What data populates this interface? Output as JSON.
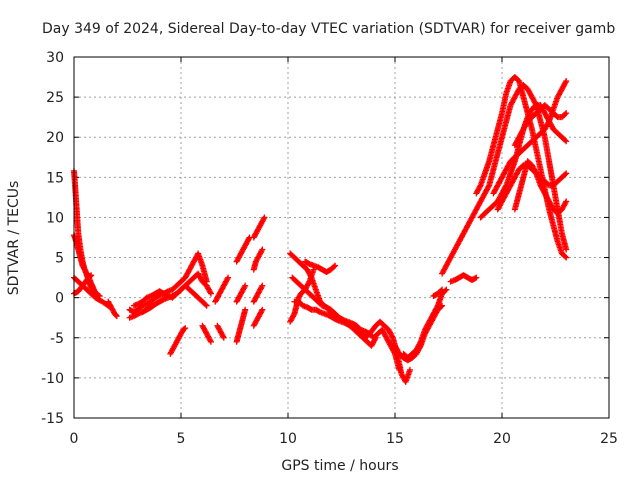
{
  "chart_data": {
    "type": "scatter",
    "title": "Day 349 of 2024, Sidereal Day-to-day VTEC variation (SDTVAR) for receiver gamb",
    "xlabel": "GPS time / hours",
    "ylabel": "SDTVAR / TECUs",
    "xlim": [
      0,
      25
    ],
    "ylim": [
      -15,
      30
    ],
    "xticks": [
      "0",
      "5",
      "10",
      "15",
      "20",
      "25"
    ],
    "yticks": [
      "-15",
      "-10",
      "-5",
      "0",
      "5",
      "10",
      "15",
      "20",
      "25",
      "30"
    ],
    "grid": true,
    "marker": "+",
    "color": "#ff0000",
    "series": [
      {
        "name": "s1",
        "x": [
          0.0,
          0.05,
          0.1,
          0.15,
          0.2,
          0.3,
          0.4,
          0.5,
          0.6,
          0.7,
          0.8
        ],
        "y": [
          15.8,
          14,
          12,
          10,
          8,
          6,
          4.5,
          3.5,
          2.8,
          2,
          1.2
        ]
      },
      {
        "name": "s2",
        "x": [
          0.0,
          0.1,
          0.2,
          0.3,
          0.4,
          0.5,
          0.6,
          0.7,
          0.8,
          0.9,
          1.0,
          1.2
        ],
        "y": [
          7.8,
          7,
          6,
          5,
          4,
          3.5,
          3,
          2.5,
          1.8,
          1.2,
          0.6,
          0.2
        ]
      },
      {
        "name": "s3",
        "x": [
          0.0,
          0.2,
          0.4,
          0.6,
          0.8,
          1.0,
          1.2,
          1.5,
          1.7
        ],
        "y": [
          2.5,
          2,
          1.5,
          1,
          0.5,
          0,
          -0.3,
          -0.8,
          -1.2
        ]
      },
      {
        "name": "s4",
        "x": [
          0.0,
          0.2,
          0.4,
          0.6,
          0.8
        ],
        "y": [
          0.5,
          0.8,
          1.5,
          2.2,
          2.8
        ]
      },
      {
        "name": "s5",
        "x": [
          1.6,
          1.7,
          1.8,
          1.9,
          2.0
        ],
        "y": [
          -0.5,
          -1,
          -1.5,
          -2,
          -2.3
        ]
      },
      {
        "name": "s6",
        "x": [
          2.6,
          2.8,
          3.0,
          3.2,
          3.4,
          3.6,
          3.8,
          4.0,
          4.2,
          4.4,
          4.6,
          4.8,
          5.0,
          5.2,
          5.4,
          5.6,
          5.8,
          6.0,
          6.2
        ],
        "y": [
          -1.5,
          -1.8,
          -1.5,
          -1,
          -0.8,
          -0.5,
          0,
          0.3,
          0.5,
          0.8,
          1,
          1.5,
          2,
          2.5,
          3.5,
          4.5,
          5.5,
          4,
          2
        ]
      },
      {
        "name": "s7",
        "x": [
          2.6,
          2.8,
          3.0,
          3.2,
          3.4,
          3.6,
          3.8,
          4.0,
          4.2,
          4.4,
          4.6,
          4.8,
          5.0,
          5.2,
          5.4,
          5.6,
          5.8,
          6.0,
          6.2,
          6.4
        ],
        "y": [
          -2.5,
          -2.3,
          -2,
          -1.8,
          -1.5,
          -1.2,
          -0.8,
          -0.5,
          -0.2,
          0,
          0.2,
          0.5,
          1,
          1.5,
          2,
          2.5,
          3,
          2,
          1.5,
          0.5
        ]
      },
      {
        "name": "s8",
        "x": [
          2.8,
          3.0,
          3.2,
          3.4,
          3.6,
          3.8,
          4.0,
          4.2,
          4.4,
          4.6,
          4.8,
          5.0,
          5.2,
          5.4,
          5.6,
          5.8,
          6.0,
          6.2
        ],
        "y": [
          -1,
          -0.8,
          -0.5,
          0,
          0.2,
          0.5,
          0.8,
          0.5,
          0.2,
          0,
          0.5,
          1,
          1.5,
          1,
          0.5,
          0,
          -0.5,
          -1
        ]
      },
      {
        "name": "s9",
        "x": [
          4.5,
          4.6,
          4.7,
          4.8,
          4.9,
          5.0,
          5.1,
          5.2
        ],
        "y": [
          -7,
          -6.5,
          -6,
          -5.5,
          -5,
          -4.5,
          -4,
          -3.8
        ]
      },
      {
        "name": "s10",
        "x": [
          6.0,
          6.1,
          6.2,
          6.3,
          6.4
        ],
        "y": [
          -3.5,
          -4,
          -4.5,
          -5,
          -5.5
        ]
      },
      {
        "name": "s11",
        "x": [
          6.6,
          6.7,
          6.8,
          6.9,
          7.0,
          7.1,
          7.2
        ],
        "y": [
          -0.5,
          0,
          0.5,
          1,
          1.5,
          2,
          2.5
        ]
      },
      {
        "name": "s12",
        "x": [
          6.7,
          6.8,
          6.9,
          7.0
        ],
        "y": [
          -3.5,
          -4,
          -4.5,
          -5
        ]
      },
      {
        "name": "s13",
        "x": [
          7.6,
          7.7,
          7.8,
          7.9,
          8.0
        ],
        "y": [
          -5.5,
          -4.5,
          -3.5,
          -2.5,
          -1.5
        ]
      },
      {
        "name": "s14",
        "x": [
          7.6,
          7.7,
          7.8,
          7.9,
          8.0
        ],
        "y": [
          -0.5,
          0,
          0.5,
          1,
          1.5
        ]
      },
      {
        "name": "s15",
        "x": [
          7.6,
          7.7,
          7.8,
          7.9,
          8.0,
          8.1,
          8.2
        ],
        "y": [
          4.5,
          5,
          5.5,
          6,
          6.5,
          7,
          7.5
        ]
      },
      {
        "name": "s16",
        "x": [
          8.4,
          8.5,
          8.6,
          8.7,
          8.8
        ],
        "y": [
          -3.5,
          -3,
          -2.5,
          -2,
          -1.5
        ]
      },
      {
        "name": "s17",
        "x": [
          8.4,
          8.5,
          8.6,
          8.7,
          8.8
        ],
        "y": [
          -0.5,
          0,
          0.5,
          1,
          1.5
        ]
      },
      {
        "name": "s18",
        "x": [
          8.4,
          8.5,
          8.6,
          8.7,
          8.8
        ],
        "y": [
          3.5,
          4.5,
          5,
          5.5,
          6
        ]
      },
      {
        "name": "s19",
        "x": [
          8.4,
          8.5,
          8.6,
          8.7,
          8.8,
          8.9
        ],
        "y": [
          7.5,
          8,
          8.5,
          9,
          9.5,
          10
        ]
      },
      {
        "name": "s20",
        "x": [
          10.1,
          10.2,
          10.3,
          10.4,
          10.5,
          10.6,
          10.8,
          11.0,
          11.2
        ],
        "y": [
          -3,
          -2.5,
          -2,
          -1,
          0,
          0.5,
          1,
          2,
          3.5
        ]
      },
      {
        "name": "s21",
        "x": [
          10.1,
          10.3,
          10.5,
          10.7,
          10.9,
          11.1,
          11.3,
          11.5,
          11.7,
          11.9,
          12.1,
          12.3,
          12.5,
          12.7,
          12.9,
          13.1,
          13.3,
          13.5,
          13.7,
          13.9,
          14.1
        ],
        "y": [
          5.5,
          5,
          4.5,
          4,
          3.5,
          2.5,
          1,
          -0.5,
          -1,
          -1.5,
          -2,
          -2.5,
          -2.8,
          -3,
          -3.5,
          -4,
          -4.5,
          -5,
          -5.5,
          -6,
          -5
        ]
      },
      {
        "name": "s22",
        "x": [
          10.2,
          10.4,
          10.6,
          10.8,
          11.0,
          11.2,
          11.4,
          11.6,
          11.8,
          12.0,
          12.2,
          12.4,
          12.6,
          12.8,
          13.0,
          13.2,
          13.4,
          13.6,
          13.8,
          14.0,
          14.2,
          14.4,
          14.6,
          14.8,
          15.0,
          15.2
        ],
        "y": [
          2.5,
          2,
          1.5,
          1,
          0.5,
          0,
          -0.5,
          -1,
          -1.2,
          -1.5,
          -2,
          -2.5,
          -2.8,
          -3,
          -3.2,
          -3.5,
          -4,
          -4.2,
          -4.5,
          -5,
          -4.5,
          -4,
          -5,
          -6,
          -7,
          -9
        ]
      },
      {
        "name": "s23",
        "x": [
          10.3,
          10.5,
          10.7,
          10.9,
          11.1,
          11.3,
          11.5,
          11.7,
          11.9,
          12.1,
          12.3,
          12.5,
          12.7,
          12.9,
          13.1,
          13.3,
          13.5,
          13.7,
          13.9,
          14.1,
          14.3,
          14.5,
          14.7,
          14.9,
          15.1,
          15.3,
          15.5,
          15.7
        ],
        "y": [
          -0.5,
          -0.5,
          -1,
          -1.2,
          -1.5,
          -1.5,
          -1.8,
          -2,
          -2.2,
          -2.5,
          -2.8,
          -3,
          -3.2,
          -3.5,
          -3.8,
          -4,
          -4.5,
          -4.8,
          -4.2,
          -3.5,
          -3,
          -3.5,
          -4,
          -5,
          -7,
          -9.5,
          -10.5,
          -9
        ]
      },
      {
        "name": "s24",
        "x": [
          10.8,
          11.0,
          11.2,
          11.4,
          11.6,
          11.8,
          12.0,
          12.2
        ],
        "y": [
          4.5,
          4.2,
          4,
          3.8,
          3.5,
          3.2,
          3.5,
          4
        ]
      },
      {
        "name": "s25",
        "x": [
          15.0,
          15.2,
          15.4,
          15.6,
          15.8,
          16.0,
          16.2,
          16.4,
          16.6,
          16.8,
          17.0,
          17.2
        ],
        "y": [
          -6,
          -7,
          -7.5,
          -7.8,
          -7.5,
          -7,
          -6,
          -4.5,
          -3.5,
          -2.5,
          -1.5,
          -1
        ]
      },
      {
        "name": "s26",
        "x": [
          15.4,
          15.6,
          15.8,
          16.0,
          16.2,
          16.4,
          16.6,
          16.8,
          17.0,
          17.2,
          17.4
        ],
        "y": [
          -7,
          -7.5,
          -7,
          -6.5,
          -5.5,
          -4,
          -3,
          -2,
          -1,
          0.5,
          1
        ]
      },
      {
        "name": "s27",
        "x": [
          17.2,
          17.4,
          17.6,
          17.8,
          18.0,
          18.2,
          18.4,
          18.6,
          18.8,
          19.0,
          19.2,
          19.4,
          19.6,
          19.8,
          20.0,
          20.2,
          20.4,
          20.6,
          20.8,
          21.0,
          21.2,
          21.4,
          21.6,
          21.8,
          22.0,
          22.2,
          22.4,
          22.6,
          22.8,
          23.0
        ],
        "y": [
          3,
          4,
          5,
          6,
          7,
          8,
          9,
          10,
          11,
          12,
          13,
          14,
          16,
          18,
          20,
          22,
          24,
          25,
          26,
          26.5,
          26,
          25,
          24,
          22,
          20,
          17,
          14,
          11,
          8,
          6
        ]
      },
      {
        "name": "s28",
        "x": [
          18.8,
          19.0,
          19.2,
          19.4,
          19.6,
          19.8,
          20.0,
          20.2,
          20.4,
          20.6,
          20.8,
          21.0,
          21.2,
          21.4,
          21.6,
          21.8,
          22.0,
          22.2,
          22.4,
          22.6,
          22.8,
          23.0
        ],
        "y": [
          13,
          14,
          15.5,
          17,
          19,
          21,
          23,
          25.5,
          27,
          27.5,
          27,
          25,
          23,
          21,
          18.5,
          16,
          13.5,
          11,
          9,
          7,
          5.5,
          5
        ]
      },
      {
        "name": "s29",
        "x": [
          19.0,
          19.2,
          19.4,
          19.6,
          19.8,
          20.0,
          20.2,
          20.4,
          20.6,
          20.8,
          21.0,
          21.2,
          21.4,
          21.6,
          21.8,
          22.0,
          22.2,
          22.4,
          22.6,
          22.8,
          23.0
        ],
        "y": [
          10,
          10.5,
          11,
          11.5,
          12,
          13,
          14,
          15.5,
          17,
          19,
          21,
          22.5,
          23.5,
          24,
          24,
          23,
          22,
          21,
          20.5,
          20,
          19.5
        ]
      },
      {
        "name": "s30",
        "x": [
          19.6,
          19.8,
          20.0,
          20.2,
          20.4,
          20.6,
          20.8,
          21.0,
          21.2,
          21.4,
          21.6,
          21.8,
          22.0,
          22.2,
          22.4,
          22.6,
          22.8,
          23.0
        ],
        "y": [
          13,
          14,
          15,
          16,
          17,
          17.5,
          18,
          18.5,
          19,
          19.5,
          20,
          20.5,
          21,
          22,
          23.5,
          25,
          26,
          27
        ]
      },
      {
        "name": "s31",
        "x": [
          20.6,
          20.8,
          21.0,
          21.2,
          21.4,
          21.6,
          21.8,
          22.0,
          22.2,
          22.4,
          22.6,
          22.8,
          23.0
        ],
        "y": [
          19,
          20,
          21,
          22,
          22.5,
          23,
          23.5,
          24,
          23.5,
          23,
          22.5,
          22.5,
          23
        ]
      },
      {
        "name": "s32",
        "x": [
          19.8,
          20.0,
          20.2,
          20.4,
          20.6,
          20.8,
          21.0,
          21.2,
          21.4,
          21.6,
          21.8,
          22.0,
          22.2,
          22.4,
          22.6,
          22.8,
          23.0
        ],
        "y": [
          11,
          12,
          13,
          14,
          15,
          16,
          16.5,
          16.5,
          16,
          15.5,
          15,
          14.5,
          14,
          14,
          14.5,
          15,
          15.5
        ]
      },
      {
        "name": "s33",
        "x": [
          20.6,
          20.8,
          21.0,
          21.2,
          21.4,
          21.6,
          21.8,
          22.0,
          22.2,
          22.4,
          22.6,
          22.8,
          23.0
        ],
        "y": [
          11,
          13,
          15,
          17,
          16.5,
          15.5,
          14,
          13,
          12,
          11,
          10.5,
          11,
          12
        ]
      },
      {
        "name": "s34",
        "x": [
          17.6,
          17.8,
          18.0,
          18.2,
          18.4,
          18.6,
          18.8
        ],
        "y": [
          2,
          2.2,
          2.5,
          2.8,
          2.5,
          2.2,
          2.5
        ]
      },
      {
        "name": "s35",
        "x": [
          16.8,
          17.0,
          17.2
        ],
        "y": [
          0.2,
          0.5,
          1
        ]
      }
    ]
  }
}
